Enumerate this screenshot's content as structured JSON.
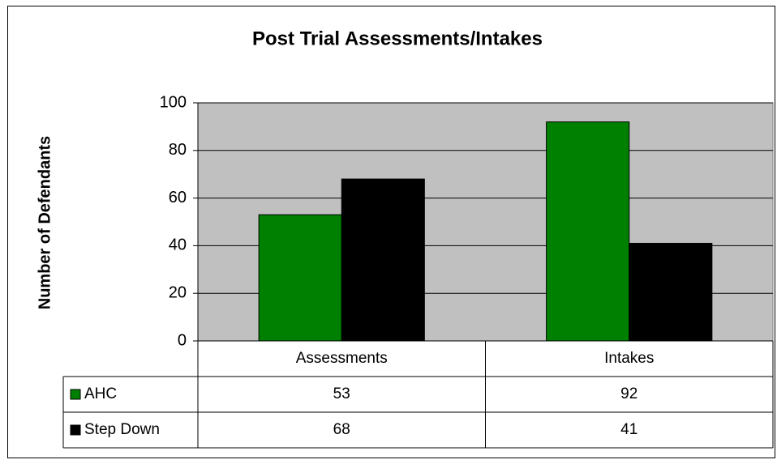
{
  "chart_data": {
    "type": "bar",
    "title": "Post Trial Assessments/Intakes",
    "y_label": "Number of Defendants",
    "categories": [
      "Assessments",
      "Intakes"
    ],
    "series": [
      {
        "name": "AHC",
        "color": "#008000",
        "values": [
          53,
          92
        ]
      },
      {
        "name": "Step Down",
        "color": "#000000",
        "values": [
          68,
          41
        ]
      }
    ],
    "ylim": [
      0,
      100
    ],
    "yticks": [
      0,
      20,
      40,
      60,
      80,
      100
    ],
    "grid": true,
    "legend": "data-table"
  }
}
